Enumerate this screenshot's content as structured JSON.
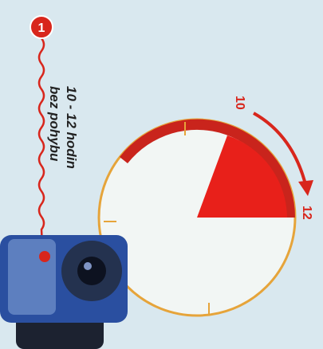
{
  "marker": "1",
  "caption": [
    "10 - 12 hodin",
    "bez pohybu"
  ],
  "clock": {
    "start_label": "10",
    "end_label": "12"
  }
}
